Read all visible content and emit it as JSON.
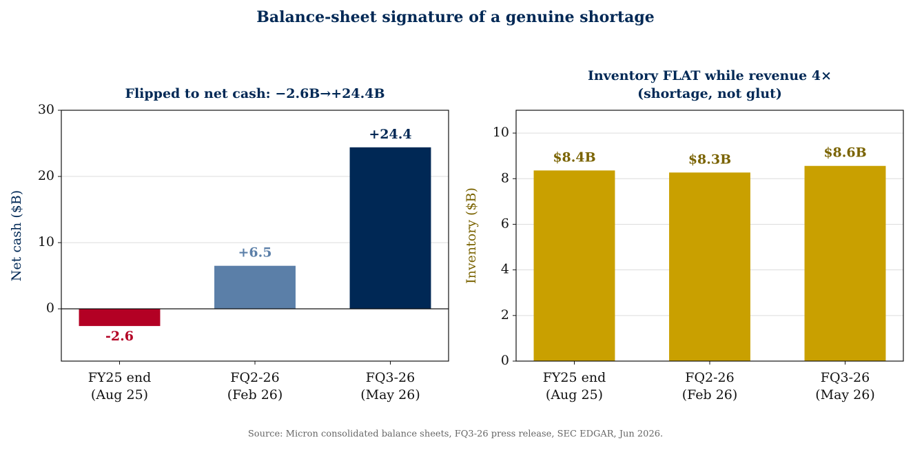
{
  "title": "Balance-sheet signature of a genuine shortage",
  "source": "Source: Micron consolidated balance sheets, FQ3-26 press release, SEC EDGAR, Jun 2026.",
  "chart_data": [
    {
      "type": "bar",
      "title": "Flipped to net cash: −2.6B→+24.4B",
      "ylabel": "Net cash ($B)",
      "ylabel_color": "#002855",
      "categories": [
        "FY25 end\n(Aug 25)",
        "FQ2-26\n(Feb 26)",
        "FQ3-26\n(May 26)"
      ],
      "values": [
        -2.6,
        6.5,
        24.4
      ],
      "value_labels": [
        "-2.6",
        "+6.5",
        "+24.4"
      ],
      "colors": [
        "#b30024",
        "#5b7fa8",
        "#002855"
      ],
      "ylim": [
        -7.9,
        30
      ],
      "yticks": [
        0,
        10,
        20,
        30
      ],
      "grid": true,
      "zero_line": true
    },
    {
      "type": "bar",
      "title": "Inventory FLAT while revenue 4×\n(shortage, not glut)",
      "ylabel": "Inventory ($B)",
      "ylabel_color": "#7a6300",
      "categories": [
        "FY25 end\n(Aug 25)",
        "FQ2-26\n(Feb 26)",
        "FQ3-26\n(May 26)"
      ],
      "values": [
        8.36,
        8.27,
        8.56
      ],
      "value_labels": [
        "$8.4B",
        "$8.3B",
        "$8.6B"
      ],
      "colors": [
        "#c9a000",
        "#c9a000",
        "#c9a000"
      ],
      "label_color": "#7a6300",
      "ylim": [
        0,
        11
      ],
      "yticks": [
        0,
        2,
        4,
        6,
        8,
        10
      ],
      "grid": true,
      "zero_line": false
    }
  ]
}
